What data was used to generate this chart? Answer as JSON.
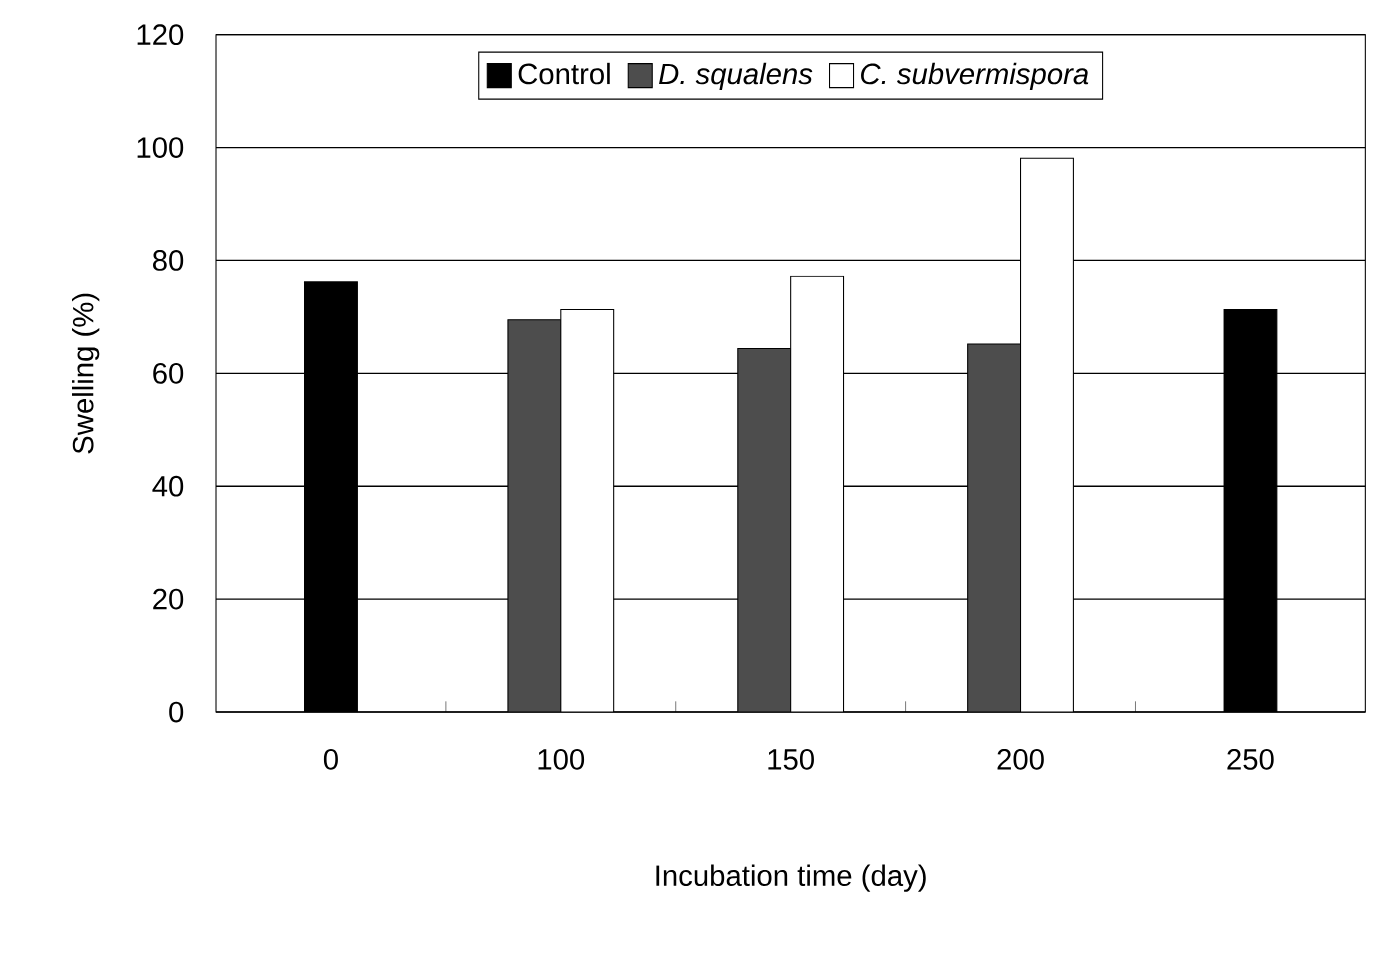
{
  "chart_data": {
    "type": "bar",
    "xlabel": "Incubation time (day)",
    "ylabel": "Swelling (%)",
    "categories": [
      "0",
      "100",
      "150",
      "200",
      "250"
    ],
    "series": [
      {
        "name": "Control",
        "color": "#000000",
        "values": [
          76.2,
          null,
          null,
          null,
          71.3
        ]
      },
      {
        "name": "*D. squalens*",
        "color": "#4d4d4d",
        "values": [
          null,
          69.5,
          64.4,
          65.2,
          null
        ]
      },
      {
        "name": "*C. subvermispora*",
        "color": "#ffffff",
        "values": [
          null,
          71.3,
          77.2,
          98.1,
          null
        ]
      }
    ],
    "ylim": [
      0,
      120
    ],
    "yticks": [
      0,
      20,
      40,
      60,
      80,
      100,
      120
    ],
    "grid": "y",
    "legend": "top"
  }
}
